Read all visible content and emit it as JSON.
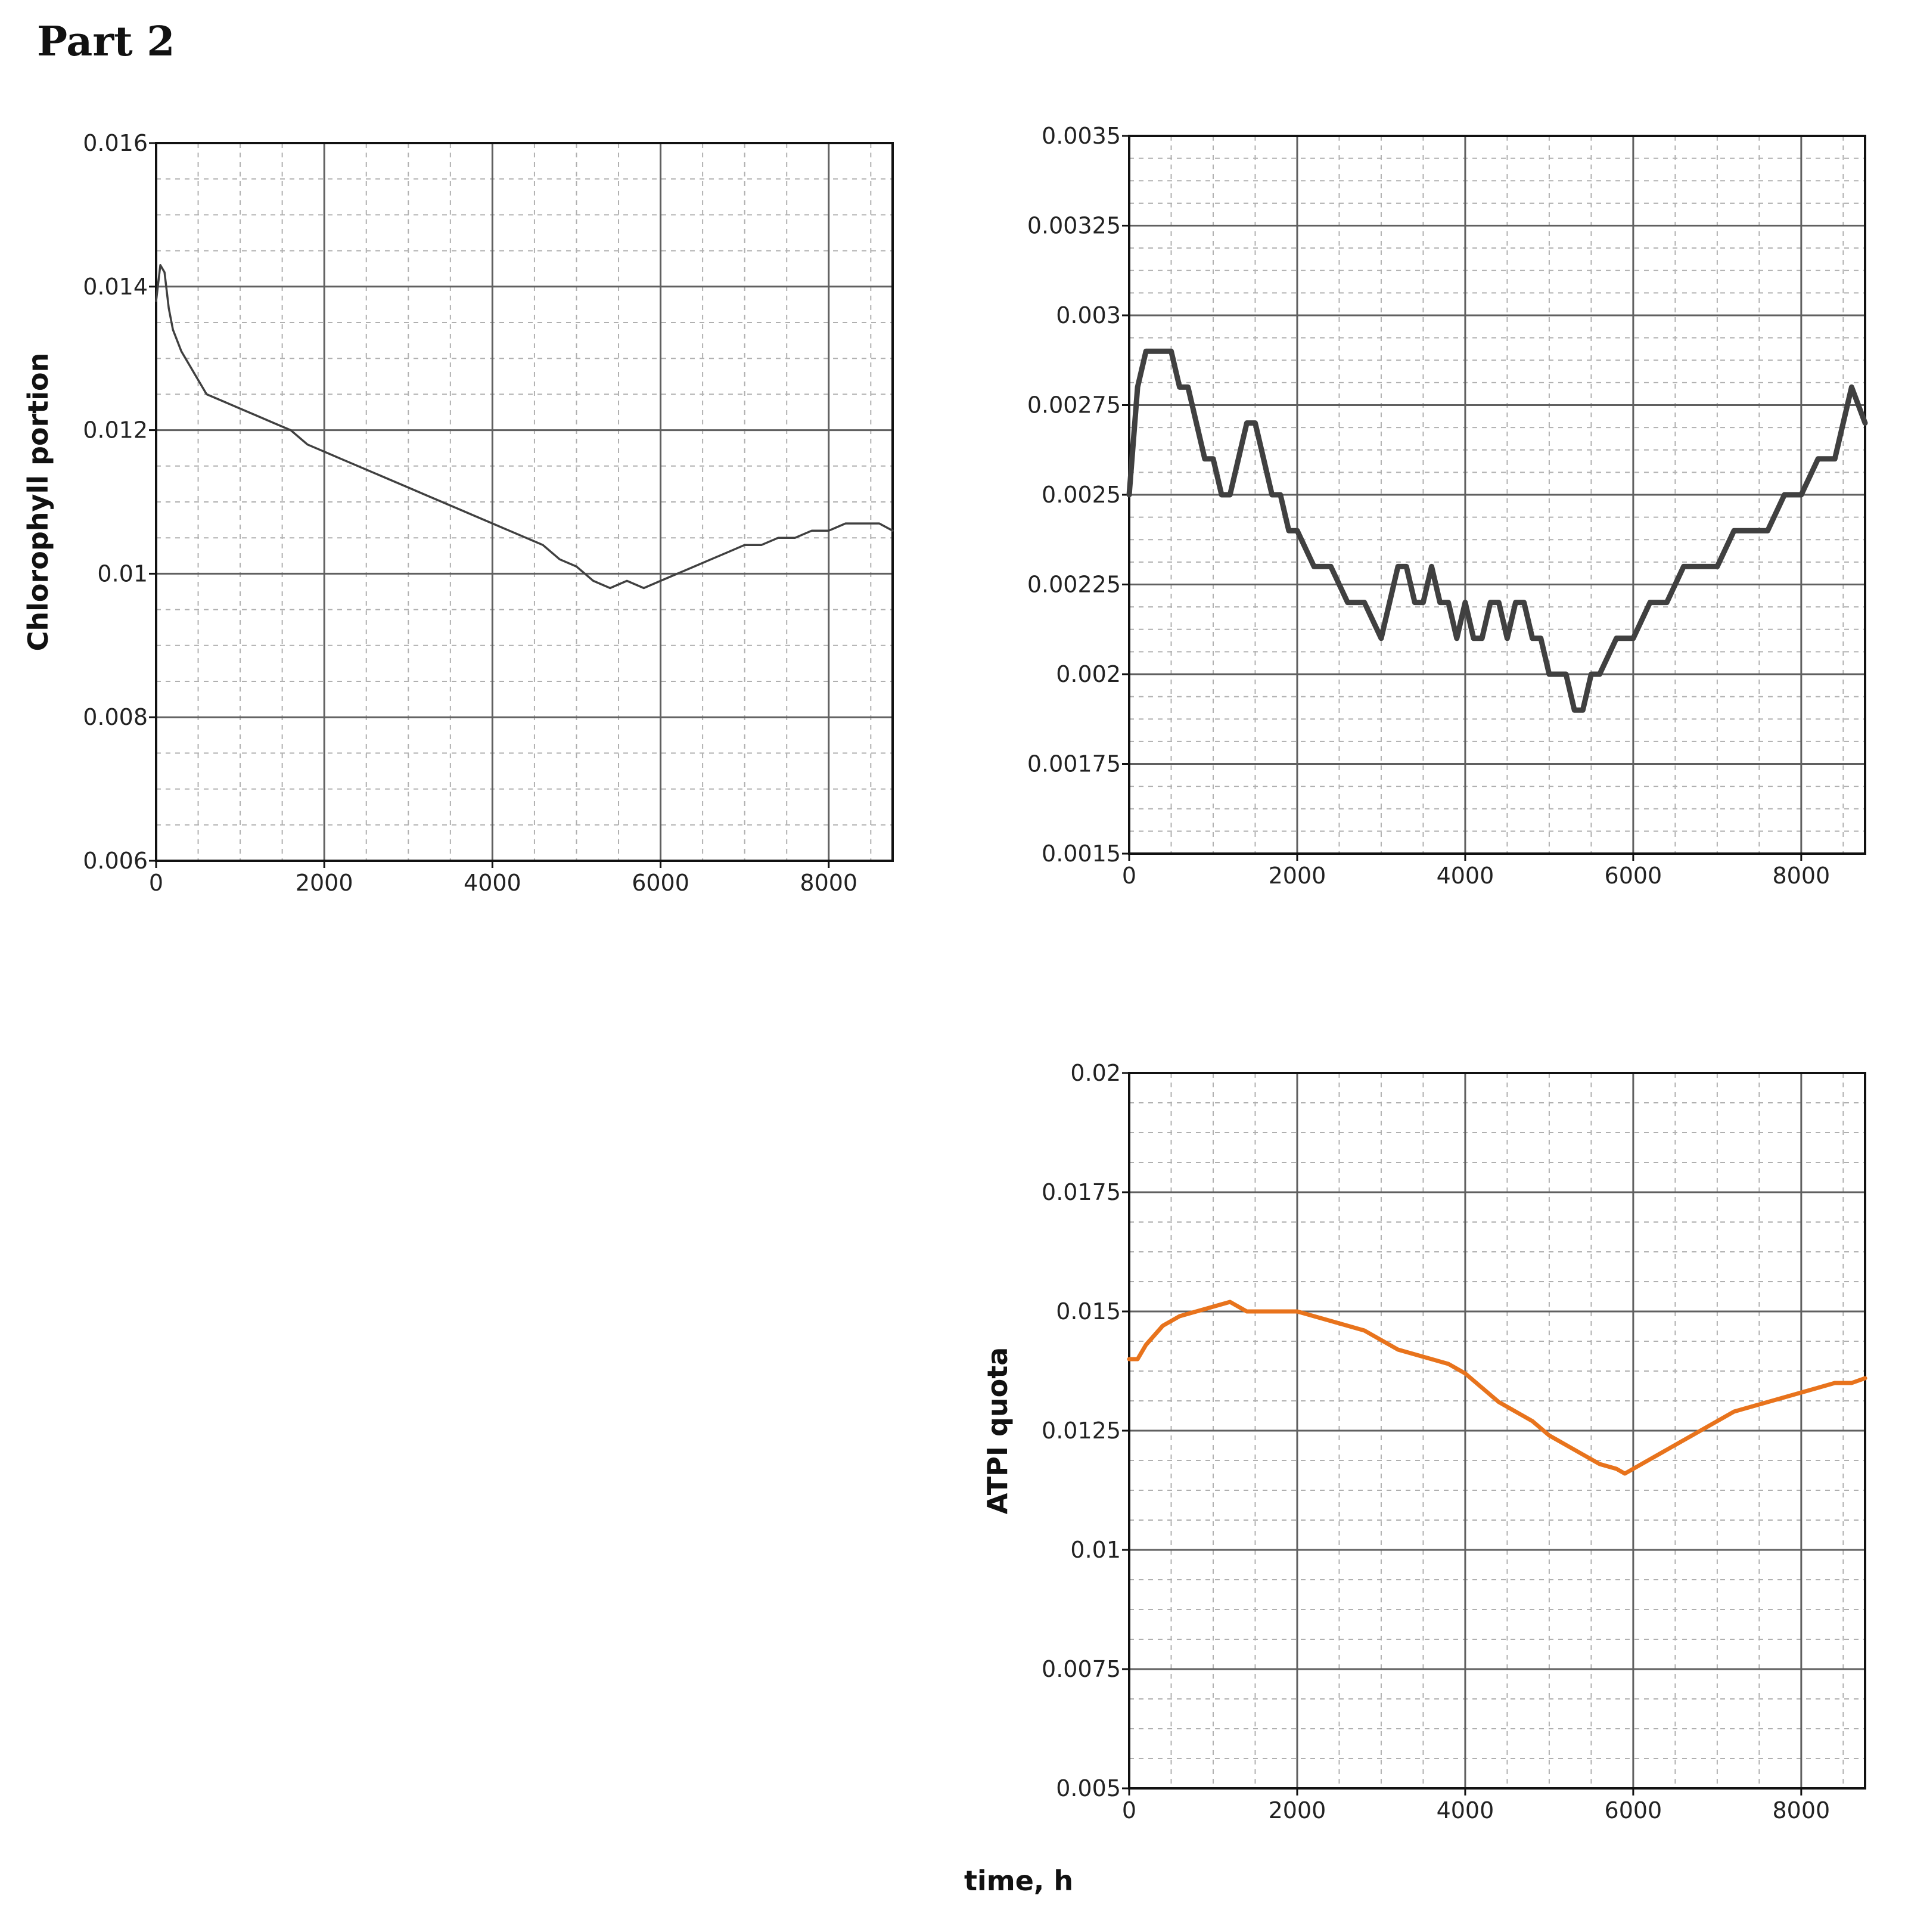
{
  "page": {
    "title": "Part 2",
    "shared_xlabel": "time, h"
  },
  "colors": {
    "dark_series": "#404040",
    "orange_series": "#e8731c",
    "grid": "#606060",
    "minor_grid": "#b0b0b0"
  },
  "chart_data": [
    {
      "type": "line",
      "title": "",
      "xlabel": "",
      "ylabel": "Chlorophyll portion",
      "xlim": [
        0,
        8760
      ],
      "ylim": [
        0.006,
        0.016
      ],
      "xticks": [
        0,
        2000,
        4000,
        6000,
        8000
      ],
      "yticks": [
        0.006,
        0.008,
        0.01,
        0.012,
        0.014,
        0.016
      ],
      "ytick_labels": [
        "0.006",
        "0.008",
        "0.01",
        "0.012",
        "0.014",
        "0.016"
      ],
      "grid": true,
      "series": [
        {
          "x": [
            0,
            50,
            100,
            150,
            200,
            300,
            400,
            500,
            600,
            800,
            1000,
            1200,
            1400,
            1600,
            1800,
            2000,
            2200,
            2400,
            2600,
            2800,
            3000,
            3200,
            3400,
            3600,
            3800,
            4000,
            4200,
            4400,
            4600,
            4800,
            5000,
            5200,
            5400,
            5600,
            5800,
            6000,
            6200,
            6400,
            6600,
            6800,
            7000,
            7200,
            7400,
            7600,
            7800,
            8000,
            8200,
            8400,
            8600,
            8760
          ],
          "y": [
            0.0138,
            0.0143,
            0.0142,
            0.0137,
            0.0134,
            0.0131,
            0.0129,
            0.0127,
            0.0125,
            0.0124,
            0.0123,
            0.0122,
            0.0121,
            0.012,
            0.0118,
            0.0117,
            0.0116,
            0.0115,
            0.0114,
            0.0113,
            0.0112,
            0.0111,
            0.011,
            0.0109,
            0.0108,
            0.0107,
            0.0106,
            0.0105,
            0.0104,
            0.0102,
            0.0101,
            0.0099,
            0.0098,
            0.0099,
            0.0098,
            0.0099,
            0.01,
            0.0101,
            0.0102,
            0.0103,
            0.0104,
            0.0104,
            0.0105,
            0.0105,
            0.0106,
            0.0106,
            0.0107,
            0.0107,
            0.0107,
            0.0106
          ]
        }
      ]
    },
    {
      "type": "line",
      "title": "",
      "xlabel": "",
      "ylabel": "",
      "xlim": [
        0,
        8760
      ],
      "ylim": [
        0.0015,
        0.0035
      ],
      "xticks": [
        0,
        2000,
        4000,
        6000,
        8000
      ],
      "yticks": [
        0.0015,
        0.00175,
        0.002,
        0.00225,
        0.0025,
        0.00275,
        0.003,
        0.00325,
        0.0035
      ],
      "ytick_labels": [
        "0.0015",
        "0.00175",
        "0.002",
        "0.00225",
        "0.0025",
        "0.00275",
        "0.003",
        "0.00325",
        "0.0035"
      ],
      "grid": true,
      "series": [
        {
          "x": [
            0,
            100,
            200,
            300,
            400,
            500,
            600,
            700,
            800,
            900,
            1000,
            1100,
            1200,
            1300,
            1400,
            1500,
            1600,
            1700,
            1800,
            1900,
            2000,
            2200,
            2400,
            2600,
            2800,
            3000,
            3100,
            3200,
            3300,
            3400,
            3500,
            3600,
            3700,
            3800,
            3900,
            4000,
            4100,
            4200,
            4300,
            4400,
            4500,
            4600,
            4700,
            4800,
            4900,
            5000,
            5100,
            5200,
            5300,
            5400,
            5500,
            5600,
            5800,
            6000,
            6200,
            6400,
            6600,
            6800,
            7000,
            7200,
            7400,
            7600,
            7800,
            8000,
            8200,
            8400,
            8600,
            8760
          ],
          "y": [
            0.0025,
            0.0028,
            0.0029,
            0.0029,
            0.0029,
            0.0029,
            0.0028,
            0.0028,
            0.0027,
            0.0026,
            0.0026,
            0.0025,
            0.0025,
            0.0026,
            0.0027,
            0.0027,
            0.0026,
            0.0025,
            0.0025,
            0.0024,
            0.0024,
            0.0023,
            0.0023,
            0.0022,
            0.0022,
            0.0021,
            0.0022,
            0.0023,
            0.0023,
            0.0022,
            0.0022,
            0.0023,
            0.0022,
            0.0022,
            0.0021,
            0.0022,
            0.0021,
            0.0021,
            0.0022,
            0.0022,
            0.0021,
            0.0022,
            0.0022,
            0.0021,
            0.0021,
            0.002,
            0.002,
            0.002,
            0.0019,
            0.0019,
            0.002,
            0.002,
            0.0021,
            0.0021,
            0.0022,
            0.0022,
            0.0023,
            0.0023,
            0.0023,
            0.0024,
            0.0024,
            0.0024,
            0.0025,
            0.0025,
            0.0026,
            0.0026,
            0.0028,
            0.0027
          ]
        }
      ]
    },
    {
      "type": "line",
      "title": "",
      "xlabel": "",
      "ylabel": "ATPI quota",
      "xlim": [
        0,
        8760
      ],
      "ylim": [
        0.005,
        0.02
      ],
      "xticks": [
        0,
        2000,
        4000,
        6000,
        8000
      ],
      "yticks": [
        0.005,
        0.0075,
        0.01,
        0.0125,
        0.015,
        0.0175,
        0.02
      ],
      "ytick_labels": [
        "0.005",
        "0.0075",
        "0.01",
        "0.0125",
        "0.015",
        "0.0175",
        "0.02"
      ],
      "grid": true,
      "series": [
        {
          "x": [
            0,
            100,
            200,
            400,
            600,
            800,
            1000,
            1200,
            1400,
            1600,
            1800,
            2000,
            2200,
            2400,
            2600,
            2800,
            3000,
            3200,
            3400,
            3600,
            3800,
            4000,
            4200,
            4400,
            4600,
            4800,
            5000,
            5200,
            5400,
            5600,
            5800,
            5900,
            6000,
            6200,
            6400,
            6600,
            6800,
            7000,
            7200,
            7400,
            7600,
            7800,
            8000,
            8200,
            8400,
            8600,
            8760
          ],
          "y": [
            0.014,
            0.014,
            0.0143,
            0.0147,
            0.0149,
            0.015,
            0.0151,
            0.0152,
            0.015,
            0.015,
            0.015,
            0.015,
            0.0149,
            0.0148,
            0.0147,
            0.0146,
            0.0144,
            0.0142,
            0.0141,
            0.014,
            0.0139,
            0.0137,
            0.0134,
            0.0131,
            0.0129,
            0.0127,
            0.0124,
            0.0122,
            0.012,
            0.0118,
            0.0117,
            0.0116,
            0.0117,
            0.0119,
            0.0121,
            0.0123,
            0.0125,
            0.0127,
            0.0129,
            0.013,
            0.0131,
            0.0132,
            0.0133,
            0.0134,
            0.0135,
            0.0135,
            0.0136
          ]
        }
      ]
    }
  ]
}
